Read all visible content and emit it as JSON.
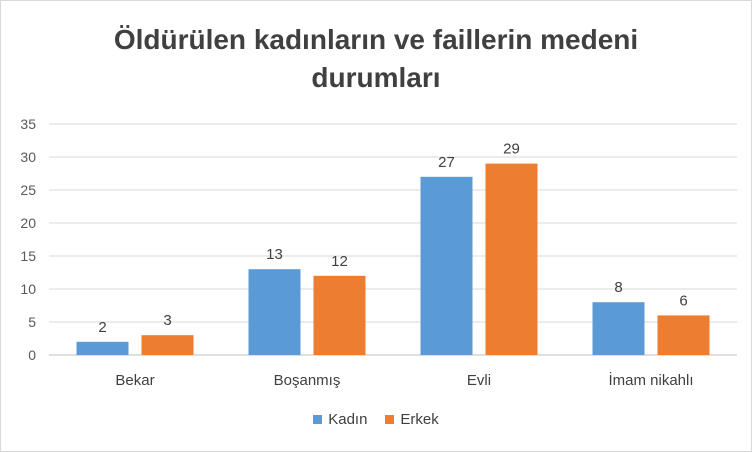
{
  "chart_data": {
    "type": "bar",
    "title_lines": [
      "Öldürülen  kadınların  ve faillerin medeni",
      "durumları"
    ],
    "categories": [
      "Bekar",
      "Boşanmış",
      "Evli",
      "İmam nikahlı"
    ],
    "series": [
      {
        "name": "Kadın",
        "values": [
          2,
          13,
          27,
          8
        ],
        "color": "#5b9bd5"
      },
      {
        "name": "Erkek",
        "values": [
          3,
          12,
          29,
          6
        ],
        "color": "#ed7d31"
      }
    ],
    "ylim": [
      0,
      35
    ],
    "yticks": [
      0,
      5,
      10,
      15,
      20,
      25,
      30,
      35
    ],
    "grid": true,
    "legend": "bottom"
  }
}
